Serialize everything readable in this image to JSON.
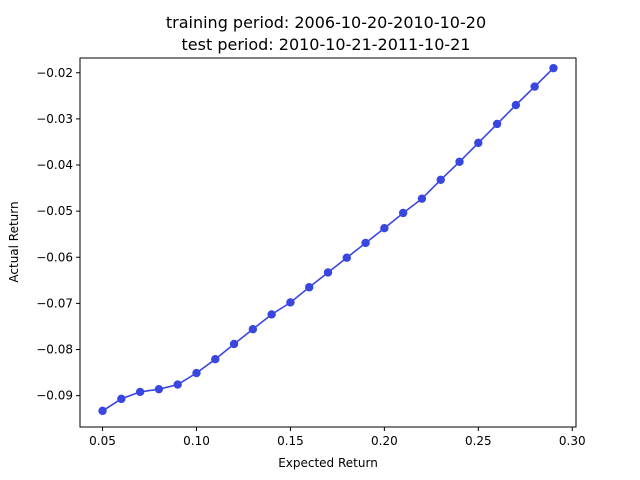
{
  "chart_data": {
    "type": "line",
    "title": "training period: 2006-10-20-2010-10-20",
    "subtitle": "test period: 2010-10-21-2011-10-21",
    "xlabel": "Expected Return",
    "ylabel": "Actual Return",
    "xlim": [
      0.038,
      0.302
    ],
    "ylim": [
      -0.0968,
      -0.0168
    ],
    "xticks": [
      0.05,
      0.1,
      0.15,
      0.2,
      0.25,
      0.3
    ],
    "xtick_labels": [
      "0.05",
      "0.10",
      "0.15",
      "0.20",
      "0.25",
      "0.30"
    ],
    "yticks": [
      -0.09,
      -0.08,
      -0.07,
      -0.06,
      -0.05,
      -0.04,
      -0.03,
      -0.02
    ],
    "ytick_labels": [
      "−0.09",
      "−0.08",
      "−0.07",
      "−0.06",
      "−0.05",
      "−0.04",
      "−0.03",
      "−0.02"
    ],
    "grid": false,
    "color": "#3a46e0",
    "series": [
      {
        "x": [
          0.05,
          0.06,
          0.07,
          0.08,
          0.09,
          0.1,
          0.11,
          0.12,
          0.13,
          0.14,
          0.15,
          0.16,
          0.17,
          0.18,
          0.19,
          0.2,
          0.21,
          0.22,
          0.23,
          0.24,
          0.25,
          0.26,
          0.27,
          0.28,
          0.29
        ],
        "y": [
          -0.0933,
          -0.0907,
          -0.0892,
          -0.0886,
          -0.0876,
          -0.0851,
          -0.0821,
          -0.0788,
          -0.0756,
          -0.0724,
          -0.0698,
          -0.0665,
          -0.0633,
          -0.0601,
          -0.0569,
          -0.0537,
          -0.0504,
          -0.0473,
          -0.0432,
          -0.0393,
          -0.0352,
          -0.0311,
          -0.027,
          -0.023,
          -0.019
        ]
      }
    ]
  }
}
